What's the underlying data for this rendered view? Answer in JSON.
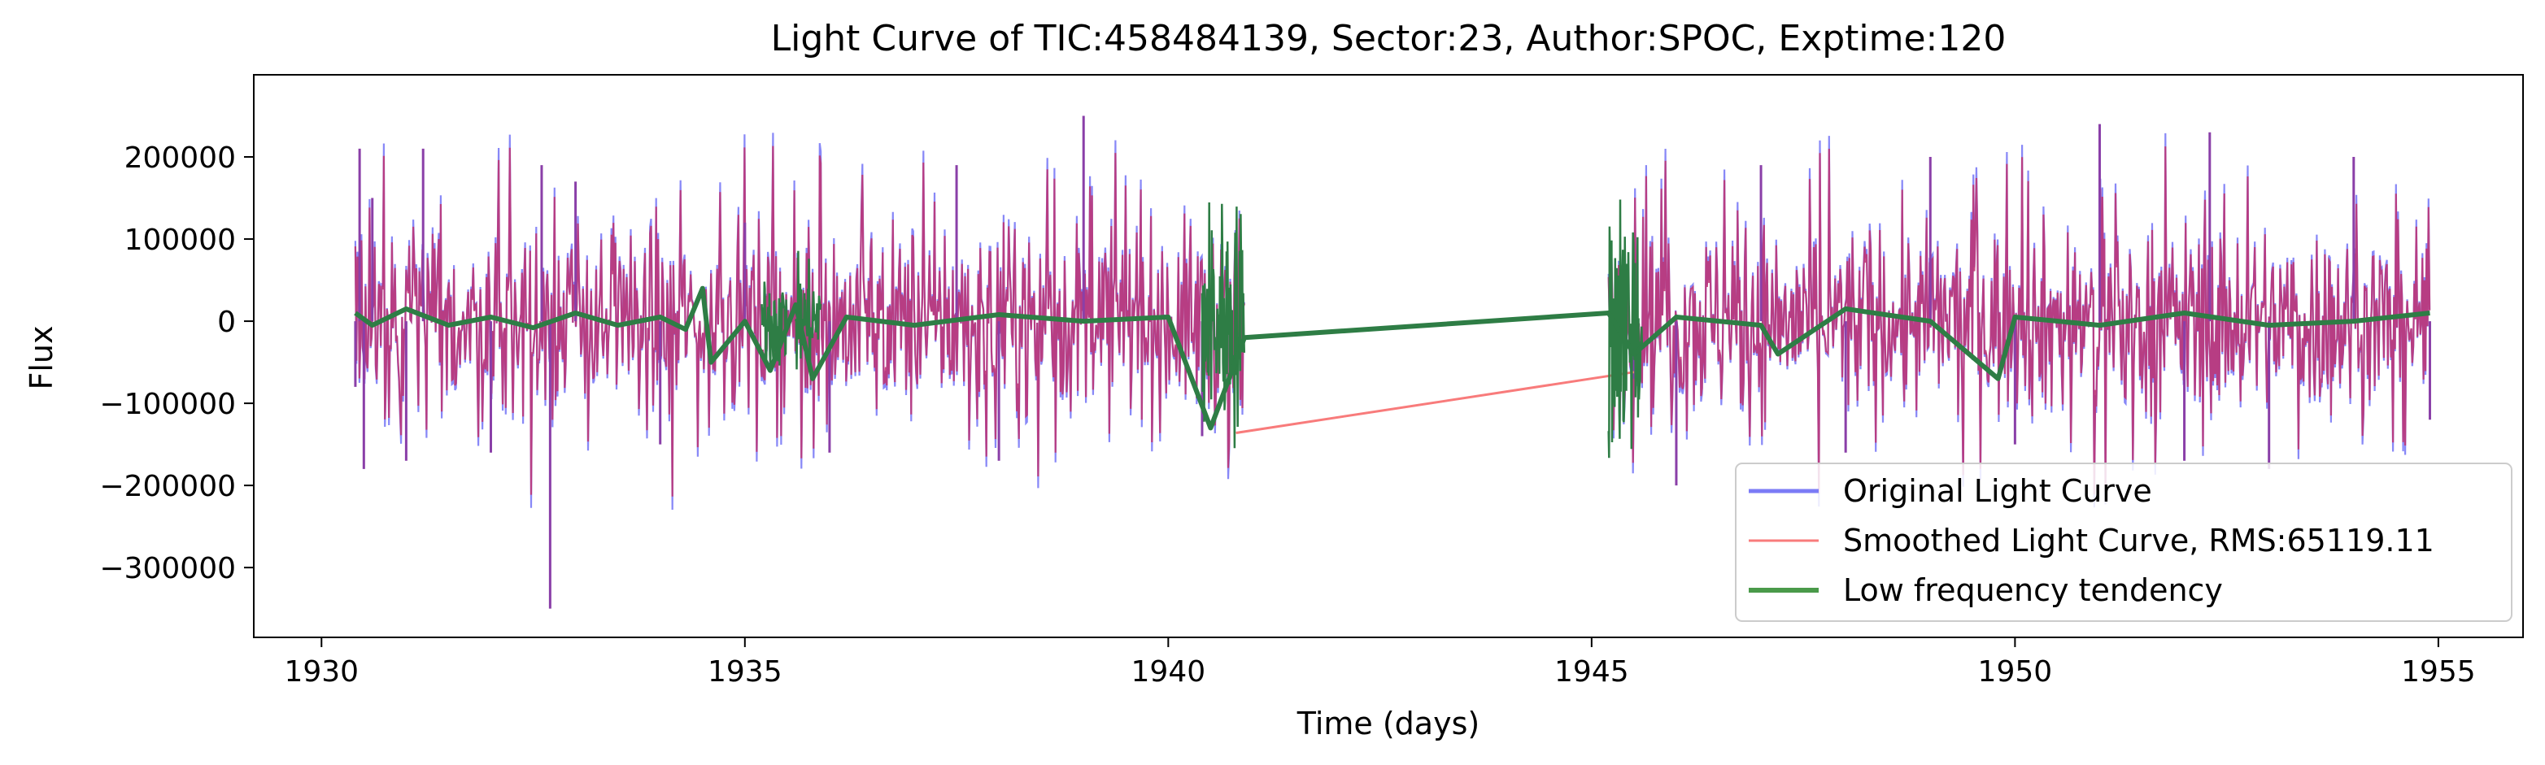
{
  "chart_data": {
    "type": "line",
    "title": "Light Curve of TIC:458484139, Sector:23, Author:SPOC, Exptime:120",
    "xlabel": "Time (days)",
    "ylabel": "Flux",
    "xlim": [
      1929.2,
      1956.0
    ],
    "ylim": [
      -385000,
      300000
    ],
    "x_ticks": [
      1930,
      1935,
      1940,
      1945,
      1950,
      1955
    ],
    "x_tick_labels": [
      "1930",
      "1935",
      "1940",
      "1945",
      "1950",
      "1955"
    ],
    "y_ticks": [
      200000,
      100000,
      0,
      -100000,
      -200000,
      -300000
    ],
    "y_tick_labels": [
      "200000",
      "100000",
      "0",
      "−100000",
      "−200000",
      "−300000"
    ],
    "grid": false,
    "legend_position": "lower-right",
    "segments": [
      {
        "x_start": 1930.4,
        "x_end": 1940.9
      },
      {
        "x_start": 1945.2,
        "x_end": 1954.9
      }
    ],
    "series": [
      {
        "name": "Original Light Curve",
        "color": "#7b7bf6",
        "description_range": [
          -235000,
          250000
        ],
        "points": [
          [
            1930.4,
            -80000
          ],
          [
            1930.45,
            210000
          ],
          [
            1930.5,
            -180000
          ],
          [
            1930.6,
            150000
          ],
          [
            1931.0,
            -170000
          ],
          [
            1931.2,
            210000
          ],
          [
            1932.0,
            -160000
          ],
          [
            1932.6,
            190000
          ],
          [
            1932.7,
            -350000
          ],
          [
            1933.0,
            170000
          ],
          [
            1934.0,
            -150000
          ],
          [
            1935.0,
            120000
          ],
          [
            1936.0,
            -160000
          ],
          [
            1937.5,
            190000
          ],
          [
            1938.0,
            -170000
          ],
          [
            1939.0,
            250000
          ],
          [
            1940.4,
            -140000
          ],
          [
            1945.5,
            -70000
          ],
          [
            1946.0,
            -200000
          ],
          [
            1947.0,
            190000
          ],
          [
            1948.0,
            -160000
          ],
          [
            1949.0,
            200000
          ],
          [
            1950.0,
            -150000
          ],
          [
            1951.0,
            240000
          ],
          [
            1952.0,
            -170000
          ],
          [
            1952.3,
            230000
          ],
          [
            1953.0,
            -180000
          ],
          [
            1954.0,
            200000
          ],
          [
            1954.9,
            -120000
          ]
        ]
      },
      {
        "name": "Smoothed Light Curve, RMS:65119.11",
        "color": "#f87b7b",
        "points": [
          [
            1940.8,
            -136000
          ],
          [
            1945.5,
            -62000
          ]
        ]
      },
      {
        "name": "Low frequency tendency",
        "color": "#2e7d45",
        "points": [
          [
            1930.4,
            10000
          ],
          [
            1930.6,
            -5000
          ],
          [
            1931.0,
            15000
          ],
          [
            1931.5,
            -5000
          ],
          [
            1932.0,
            5000
          ],
          [
            1932.5,
            -8000
          ],
          [
            1933.0,
            10000
          ],
          [
            1933.5,
            -5000
          ],
          [
            1934.0,
            5000
          ],
          [
            1934.3,
            -10000
          ],
          [
            1934.5,
            40000
          ],
          [
            1934.6,
            -50000
          ],
          [
            1935.0,
            0
          ],
          [
            1935.3,
            -60000
          ],
          [
            1935.6,
            20000
          ],
          [
            1935.8,
            -70000
          ],
          [
            1936.2,
            5000
          ],
          [
            1937.0,
            -5000
          ],
          [
            1938.0,
            8000
          ],
          [
            1939.0,
            0
          ],
          [
            1940.0,
            5000
          ],
          [
            1940.5,
            -130000
          ],
          [
            1940.9,
            -20000
          ],
          [
            1945.2,
            10000
          ],
          [
            1945.5,
            -40000
          ],
          [
            1946.0,
            5000
          ],
          [
            1947.0,
            -5000
          ],
          [
            1947.2,
            -40000
          ],
          [
            1948.0,
            15000
          ],
          [
            1949.0,
            0
          ],
          [
            1949.8,
            -70000
          ],
          [
            1950.0,
            5000
          ],
          [
            1951.0,
            -5000
          ],
          [
            1952.0,
            10000
          ],
          [
            1953.0,
            -5000
          ],
          [
            1954.0,
            0
          ],
          [
            1954.9,
            10000
          ]
        ]
      }
    ]
  },
  "legend": {
    "items": [
      {
        "label": "Original Light Curve",
        "color": "#7b7bf6",
        "width": 5
      },
      {
        "label": "Smoothed Light Curve, RMS:65119.11",
        "color": "#f87b7b",
        "width": 3
      },
      {
        "label": "Low frequency tendency",
        "color": "#4a9a4a",
        "width": 6
      }
    ]
  }
}
